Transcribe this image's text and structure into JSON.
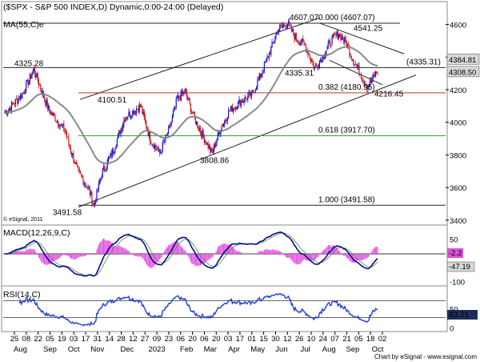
{
  "chart_data": {
    "type": "candlestick",
    "title": "($SPX - S&P 500 INDEX,D) Dynamic,0:00-24:00 (Delayed)",
    "ma_label": "MA(55,C)e",
    "copyright": "© eSignal, 2011",
    "footer": "Chart by eSignal - www.esignal.com",
    "price_axis": {
      "ticks": [
        3400,
        3600,
        3800,
        4000,
        4200,
        4400,
        4600
      ],
      "min": 3380,
      "max": 4730
    },
    "current_labels": {
      "ma": "4384.81",
      "close": "4308.50"
    },
    "annotations": [
      {
        "text": "4607.07",
        "price": 4607.07,
        "kind": "pivot-high"
      },
      {
        "text": "0.000 (4607.07)",
        "price": 4607.07,
        "kind": "fib"
      },
      {
        "text": "4541.25",
        "price": 4541.25,
        "kind": "pivot"
      },
      {
        "text": "4325.28",
        "price": 4325.28,
        "kind": "pivot-high"
      },
      {
        "text": "(4335.31)",
        "price": 4335.31,
        "kind": "level"
      },
      {
        "text": "4335.31",
        "price": 4335.31,
        "kind": "pivot"
      },
      {
        "text": "4100.51",
        "price": 4100.51,
        "kind": "pivot"
      },
      {
        "text": "0.382 (4180.95)",
        "price": 4180.95,
        "kind": "fib"
      },
      {
        "text": "4216.45",
        "price": 4216.45,
        "kind": "pivot-low"
      },
      {
        "text": "0.618 (3917.70)",
        "price": 3917.7,
        "kind": "fib"
      },
      {
        "text": "3808.86",
        "price": 3808.86,
        "kind": "pivot-low"
      },
      {
        "text": "1.000 (3491.58)",
        "price": 3491.58,
        "kind": "fib"
      },
      {
        "text": "3491.58",
        "price": 3491.58,
        "kind": "pivot-low"
      }
    ],
    "x_tick_labels": [
      "25",
      "08",
      "22",
      "05",
      "19",
      "03",
      "17",
      "31",
      "14",
      "28",
      "12",
      "27",
      "09",
      "23",
      "06",
      "20",
      "06",
      "20",
      "03",
      "17",
      "01",
      "15",
      "30",
      "12",
      "26",
      "10",
      "24",
      "07",
      "21",
      "05",
      "18",
      "02"
    ],
    "x_month_labels": [
      "Aug",
      "Sep",
      "Oct",
      "Nov",
      "Dec",
      "2023",
      "Feb",
      "Mar",
      "Apr",
      "May",
      "Jun",
      "Jul",
      "Aug",
      "Sep",
      "Oct"
    ],
    "macd": {
      "label": "MACD(12,26,9,C)",
      "ticks": [
        "50",
        "0",
        "-50",
        "-100"
      ],
      "current": {
        "signal": "-2.2",
        "macd": "-47.19"
      }
    },
    "rsi": {
      "label": "RSI(14,C)",
      "ticks": [
        "50",
        "0"
      ],
      "current": "43.21"
    },
    "colors": {
      "up": "#1414d2",
      "down": "#d21414",
      "ma": "#8a8a8a",
      "fib382": "#c23232",
      "fib618": "#22aa22",
      "macd": "#0a0a8a",
      "signal": "#4b8f4b",
      "hist": "#e24fe0",
      "rsi": "#1e3ed6",
      "label_bg": "#d7d7d7",
      "label_dark": "#1f2d5c",
      "label_pink": "#e04fd6"
    }
  }
}
